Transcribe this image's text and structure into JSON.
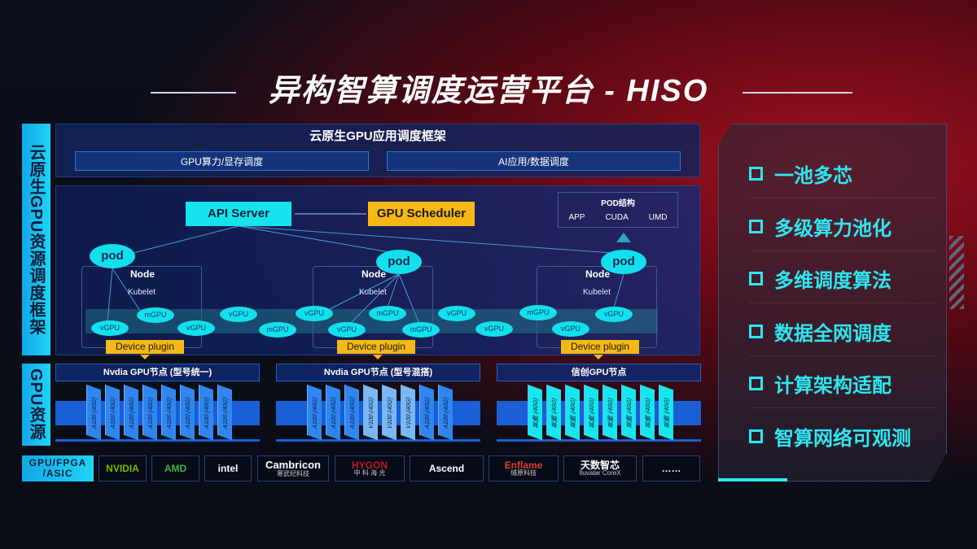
{
  "title": "异构智算调度运营平台 - HISO",
  "left_labels": {
    "framework": "云原生GPU资源调度框架",
    "resources": "GPU资源",
    "hardware": "GPU/FPGA /ASIC"
  },
  "top_panel": {
    "title": "云原生GPU应用调度框架",
    "boxes": [
      "GPU算力/显存调度",
      "AI应用/数据调度"
    ]
  },
  "scheduler": {
    "api_server": "API Server",
    "gpu_scheduler": "GPU Scheduler",
    "pod_structure": {
      "title": "POD结构",
      "items": [
        "APP",
        "CUDA",
        "UMD"
      ]
    },
    "pod_label": "pod",
    "node_label": "Node",
    "kubelet_label": "Kubelet",
    "device_plugin": "Device plugin",
    "units": [
      "vGPU",
      "mGPU",
      "vGPU",
      "vGPU",
      "mGPU",
      "vGPU",
      "vGPU",
      "mGPU",
      "mGPU",
      "vGPU",
      "vGPU",
      "mGPU",
      "vGPU",
      "vGPU"
    ]
  },
  "gpu_nodes": [
    {
      "title": "Nvdia GPU节点 (型号统一)",
      "chips": [
        "A100 (40G)",
        "A100 (40G)",
        "A100 (40G)",
        "A100 (40G)",
        "A100 (40G)",
        "A100 (40G)",
        "A100 (40G)",
        "A100 (40G)"
      ],
      "colors": [
        "#2f86f0",
        "#2f86f0",
        "#2f86f0",
        "#2f86f0",
        "#2f86f0",
        "#2f86f0",
        "#2f86f0",
        "#2f86f0"
      ]
    },
    {
      "title": "Nvdia GPU节点 (型号混搭)",
      "chips": [
        "A100 (40G)",
        "A100 (40G)",
        "A100 (40G)",
        "V100 (40G)",
        "V100 (40G)",
        "V100 (40G)",
        "A100 (40G)",
        "A100 (40G)"
      ],
      "colors": [
        "#2f86f0",
        "#2f86f0",
        "#2f86f0",
        "#7ab8f5",
        "#7ab8f5",
        "#7ab8f5",
        "#2f86f0",
        "#2f86f0"
      ]
    },
    {
      "title": "信创GPU节点",
      "chips": [
        "昇腾 (40G)",
        "昇腾 (40G)",
        "昇腾 (40G)",
        "昇腾 (40G)",
        "昇腾 (40G)",
        "昇腾 (40G)",
        "昇腾 (40G)",
        "昇腾 (40G)"
      ],
      "colors": [
        "#18e6ee",
        "#18e6ee",
        "#18e6ee",
        "#18e6ee",
        "#18e6ee",
        "#18e6ee",
        "#18e6ee",
        "#18e6ee"
      ]
    }
  ],
  "vendors": [
    {
      "name": "NVIDIA",
      "sub": "",
      "color": "#76b900"
    },
    {
      "name": "AMD",
      "sub": "",
      "color": "#3bb54a"
    },
    {
      "name": "intel",
      "sub": "",
      "color": "#ffffff"
    },
    {
      "name": "Cambricon",
      "sub": "寒武纪科技",
      "color": "#ffffff"
    },
    {
      "name": "HYGON",
      "sub": "中 科 海 光",
      "color": "#c0182c"
    },
    {
      "name": "Ascend",
      "sub": "",
      "color": "#ffffff"
    },
    {
      "name": "Enflame",
      "sub": "燧原科技",
      "color": "#e0402a"
    },
    {
      "name": "天数智芯",
      "sub": "Iluvatar CoreX",
      "color": "#ffffff"
    },
    {
      "name": "……",
      "sub": "",
      "color": "#ffffff"
    }
  ],
  "features": [
    "一池多芯",
    "多级算力池化",
    "多维调度算法",
    "数据全网调度",
    "计算架构适配",
    "智算网络可观测"
  ],
  "colors": {
    "accent_cyan": "#15e3ee",
    "accent_yellow": "#f5b816",
    "background_red": "#a0101e"
  }
}
